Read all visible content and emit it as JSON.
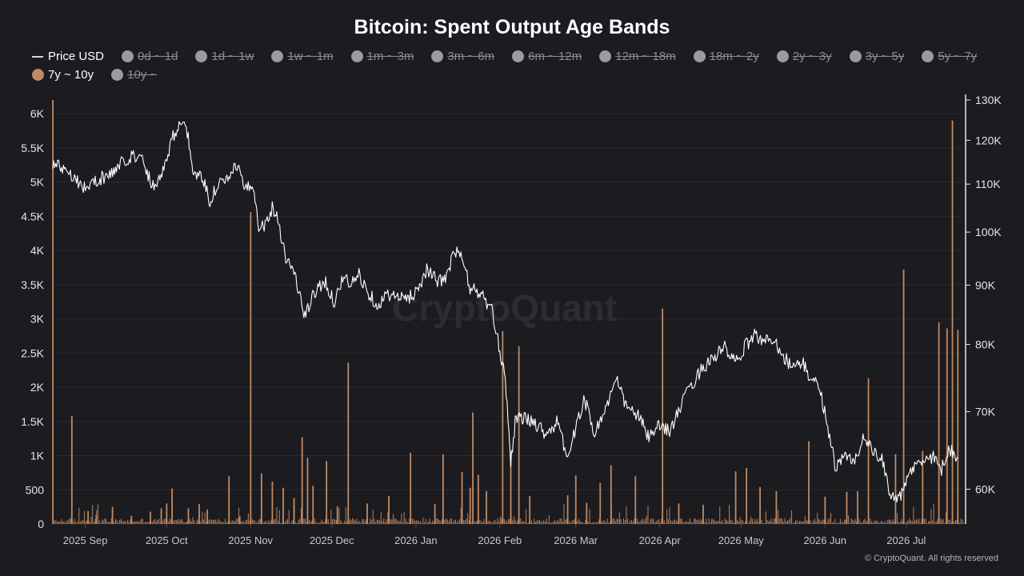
{
  "title": "Bitcoin: Spent Output Age Bands",
  "watermark": "CryptoQuant",
  "copyright": "© CryptoQuant. All rights reserved",
  "colors": {
    "background": "#1b1b20",
    "price_line": "#ffffff",
    "band_7y_10y": "#c38a62",
    "legend_off": "#9a9aa4"
  },
  "legend": [
    {
      "label": "Price USD",
      "type": "line",
      "active": true
    },
    {
      "label": "0d ~ 1d",
      "type": "dot",
      "active": false
    },
    {
      "label": "1d ~ 1w",
      "type": "dot",
      "active": false
    },
    {
      "label": "1w ~ 1m",
      "type": "dot",
      "active": false
    },
    {
      "label": "1m ~ 3m",
      "type": "dot",
      "active": false
    },
    {
      "label": "3m ~ 6m",
      "type": "dot",
      "active": false
    },
    {
      "label": "6m ~ 12m",
      "type": "dot",
      "active": false
    },
    {
      "label": "12m ~ 18m",
      "type": "dot",
      "active": false
    },
    {
      "label": "18m ~ 2y",
      "type": "dot",
      "active": false
    },
    {
      "label": "2y ~ 3y",
      "type": "dot",
      "active": false
    },
    {
      "label": "3y ~ 5y",
      "type": "dot",
      "active": false
    },
    {
      "label": "5y ~ 7y",
      "type": "dot",
      "active": false
    },
    {
      "label": "7y ~ 10y",
      "type": "dot",
      "active": true
    },
    {
      "label": "10y ~",
      "type": "dot",
      "active": false
    }
  ],
  "chart_data": {
    "type": "line",
    "title": "Bitcoin: Spent Output Age Bands",
    "x_tick_labels": [
      "2025 Sep",
      "2025 Oct",
      "2025 Nov",
      "2025 Dec",
      "2026 Jan",
      "2026 Feb",
      "2026 Mar",
      "2026 Apr",
      "2026 May",
      "2026 Jun",
      "2026 Jul"
    ],
    "x_tick_dates": [
      "2025-09-01",
      "2025-10-01",
      "2025-11-01",
      "2025-12-01",
      "2026-01-01",
      "2026-02-01",
      "2026-03-01",
      "2026-04-01",
      "2026-05-01",
      "2026-06-01",
      "2026-07-01"
    ],
    "x_range": [
      "2025-08-20",
      "2026-07-22"
    ],
    "left_axis": {
      "ticks": [
        0,
        500,
        1000,
        1500,
        2000,
        2500,
        3000,
        3500,
        4000,
        4500,
        5000,
        5500,
        6000
      ],
      "tick_labels": [
        "0",
        "500",
        "1K",
        "1.5K",
        "2K",
        "2.5K",
        "3K",
        "3.5K",
        "4K",
        "4.5K",
        "5K",
        "5.5K",
        "6K"
      ],
      "ylim": [
        0,
        6200
      ]
    },
    "right_axis": {
      "scale": "log",
      "ticks": [
        60000,
        70000,
        80000,
        90000,
        100000,
        110000,
        120000,
        130000
      ],
      "tick_labels": [
        "60K",
        "70K",
        "80K",
        "90K",
        "100K",
        "110K",
        "120K",
        "130K"
      ],
      "ylim": [
        56000,
        130000
      ]
    },
    "grid": true,
    "series": [
      {
        "name": "Price USD",
        "axis": "right",
        "points": [
          [
            "2025-08-20",
            114500
          ],
          [
            "2025-08-25",
            113500
          ],
          [
            "2025-08-28",
            111500
          ],
          [
            "2025-09-01",
            109000
          ],
          [
            "2025-09-05",
            110800
          ],
          [
            "2025-09-10",
            112000
          ],
          [
            "2025-09-15",
            115000
          ],
          [
            "2025-09-18",
            116500
          ],
          [
            "2025-09-22",
            115500
          ],
          [
            "2025-09-26",
            109500
          ],
          [
            "2025-09-30",
            113500
          ],
          [
            "2025-10-03",
            120500
          ],
          [
            "2025-10-06",
            124500
          ],
          [
            "2025-10-09",
            121000
          ],
          [
            "2025-10-11",
            112000
          ],
          [
            "2025-10-14",
            111500
          ],
          [
            "2025-10-17",
            106500
          ],
          [
            "2025-10-20",
            110000
          ],
          [
            "2025-10-24",
            110800
          ],
          [
            "2025-10-27",
            114500
          ],
          [
            "2025-10-30",
            108500
          ],
          [
            "2025-11-02",
            110000
          ],
          [
            "2025-11-04",
            101500
          ],
          [
            "2025-11-06",
            101200
          ],
          [
            "2025-11-09",
            105000
          ],
          [
            "2025-11-11",
            103000
          ],
          [
            "2025-11-14",
            95000
          ],
          [
            "2025-11-17",
            92500
          ],
          [
            "2025-11-21",
            84500
          ],
          [
            "2025-11-24",
            88000
          ],
          [
            "2025-11-28",
            91000
          ],
          [
            "2025-12-02",
            87000
          ],
          [
            "2025-12-05",
            91500
          ],
          [
            "2025-12-08",
            90000
          ],
          [
            "2025-12-11",
            92000
          ],
          [
            "2025-12-14",
            89000
          ],
          [
            "2025-12-18",
            86500
          ],
          [
            "2025-12-22",
            88500
          ],
          [
            "2025-12-26",
            87500
          ],
          [
            "2025-12-30",
            88000
          ],
          [
            "2026-01-02",
            89500
          ],
          [
            "2026-01-05",
            93000
          ],
          [
            "2026-01-09",
            90500
          ],
          [
            "2026-01-13",
            92000
          ],
          [
            "2026-01-15",
            96500
          ],
          [
            "2026-01-18",
            95000
          ],
          [
            "2026-01-21",
            89500
          ],
          [
            "2026-01-25",
            88500
          ],
          [
            "2026-01-29",
            85500
          ],
          [
            "2026-02-01",
            79000
          ],
          [
            "2026-02-03",
            75000
          ],
          [
            "2026-02-05",
            63500
          ],
          [
            "2026-02-07",
            69500
          ],
          [
            "2026-02-10",
            69000
          ],
          [
            "2026-02-14",
            68500
          ],
          [
            "2026-02-18",
            67000
          ],
          [
            "2026-02-22",
            68500
          ],
          [
            "2026-02-26",
            64000
          ],
          [
            "2026-03-01",
            67500
          ],
          [
            "2026-03-04",
            72000
          ],
          [
            "2026-03-08",
            67000
          ],
          [
            "2026-03-12",
            70500
          ],
          [
            "2026-03-16",
            74500
          ],
          [
            "2026-03-20",
            70500
          ],
          [
            "2026-03-24",
            69500
          ],
          [
            "2026-03-28",
            66500
          ],
          [
            "2026-04-01",
            68000
          ],
          [
            "2026-04-05",
            67500
          ],
          [
            "2026-04-09",
            71000
          ],
          [
            "2026-04-13",
            74000
          ],
          [
            "2026-04-17",
            76500
          ],
          [
            "2026-04-21",
            78000
          ],
          [
            "2026-04-25",
            79500
          ],
          [
            "2026-04-29",
            77000
          ],
          [
            "2026-05-03",
            80000
          ],
          [
            "2026-05-06",
            81500
          ],
          [
            "2026-05-10",
            80500
          ],
          [
            "2026-05-13",
            81000
          ],
          [
            "2026-05-17",
            78000
          ],
          [
            "2026-05-20",
            76500
          ],
          [
            "2026-05-24",
            77000
          ],
          [
            "2026-05-27",
            74500
          ],
          [
            "2026-05-30",
            73500
          ],
          [
            "2026-06-02",
            68000
          ],
          [
            "2026-06-05",
            62500
          ],
          [
            "2026-06-08",
            64000
          ],
          [
            "2026-06-12",
            63500
          ],
          [
            "2026-06-15",
            66500
          ],
          [
            "2026-06-19",
            64500
          ],
          [
            "2026-06-22",
            63500
          ],
          [
            "2026-06-25",
            59500
          ],
          [
            "2026-06-29",
            59000
          ],
          [
            "2026-07-03",
            62500
          ],
          [
            "2026-07-07",
            63500
          ],
          [
            "2026-07-11",
            64000
          ],
          [
            "2026-07-14",
            62500
          ],
          [
            "2026-07-17",
            65000
          ],
          [
            "2026-07-20",
            64000
          ]
        ]
      },
      {
        "name": "7y ~ 10y",
        "axis": "left",
        "type": "bar",
        "baseline": 40,
        "spikes": [
          [
            "2025-08-20",
            6200
          ],
          [
            "2025-08-27",
            1580
          ],
          [
            "2025-09-02",
            190
          ],
          [
            "2025-09-05",
            130
          ],
          [
            "2025-09-11",
            250
          ],
          [
            "2025-09-18",
            120
          ],
          [
            "2025-09-25",
            180
          ],
          [
            "2025-09-29",
            230
          ],
          [
            "2025-10-01",
            300
          ],
          [
            "2025-10-03",
            520
          ],
          [
            "2025-10-09",
            230
          ],
          [
            "2025-10-13",
            290
          ],
          [
            "2025-10-16",
            210
          ],
          [
            "2025-10-24",
            700
          ],
          [
            "2025-10-28",
            110
          ],
          [
            "2025-11-01",
            4560
          ],
          [
            "2025-11-05",
            740
          ],
          [
            "2025-11-09",
            620
          ],
          [
            "2025-11-13",
            530
          ],
          [
            "2025-11-17",
            380
          ],
          [
            "2025-11-20",
            1270
          ],
          [
            "2025-11-22",
            970
          ],
          [
            "2025-11-24",
            560
          ],
          [
            "2025-11-29",
            920
          ],
          [
            "2025-12-03",
            260
          ],
          [
            "2025-12-07",
            2360
          ],
          [
            "2025-12-14",
            300
          ],
          [
            "2025-12-22",
            410
          ],
          [
            "2025-12-30",
            1040
          ],
          [
            "2026-01-08",
            290
          ],
          [
            "2026-01-11",
            1020
          ],
          [
            "2026-01-18",
            760
          ],
          [
            "2026-01-21",
            530
          ],
          [
            "2026-01-22",
            1630
          ],
          [
            "2026-01-24",
            720
          ],
          [
            "2026-01-27",
            480
          ],
          [
            "2026-02-02",
            2820
          ],
          [
            "2026-02-05",
            1050
          ],
          [
            "2026-02-08",
            2600
          ],
          [
            "2026-02-12",
            410
          ],
          [
            "2026-02-26",
            420
          ],
          [
            "2026-03-01",
            710
          ],
          [
            "2026-03-05",
            310
          ],
          [
            "2026-03-10",
            600
          ],
          [
            "2026-03-14",
            860
          ],
          [
            "2026-03-23",
            700
          ],
          [
            "2026-04-02",
            3150
          ],
          [
            "2026-04-08",
            300
          ],
          [
            "2026-04-17",
            280
          ],
          [
            "2026-04-29",
            770
          ],
          [
            "2026-05-03",
            820
          ],
          [
            "2026-05-08",
            540
          ],
          [
            "2026-05-14",
            480
          ],
          [
            "2026-05-26",
            1210
          ],
          [
            "2026-06-01",
            400
          ],
          [
            "2026-06-09",
            470
          ],
          [
            "2026-06-13",
            480
          ],
          [
            "2026-06-17",
            2130
          ],
          [
            "2026-06-27",
            1020
          ],
          [
            "2026-06-30",
            3720
          ],
          [
            "2026-07-07",
            1070
          ],
          [
            "2026-07-13",
            2950
          ],
          [
            "2026-07-16",
            2860
          ],
          [
            "2026-07-18",
            5900
          ],
          [
            "2026-07-20",
            2840
          ]
        ]
      }
    ]
  }
}
